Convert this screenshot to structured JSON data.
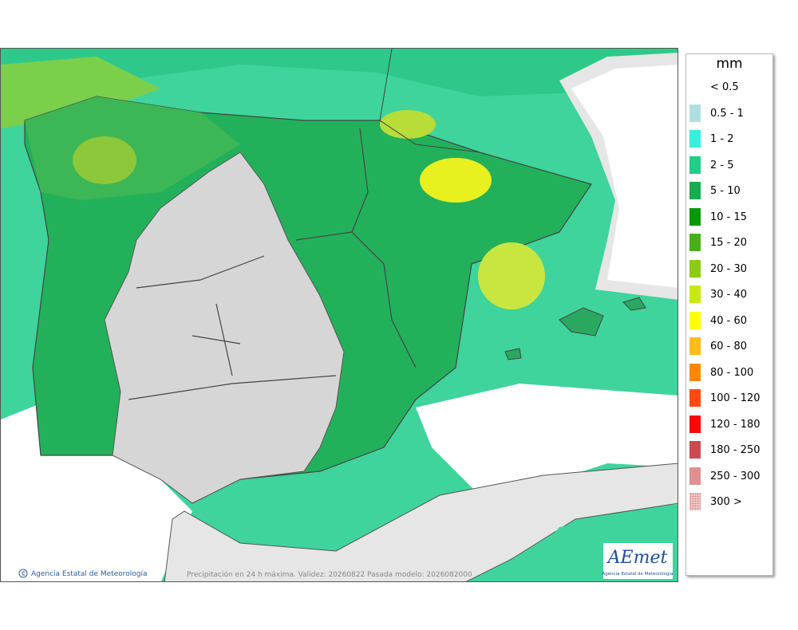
{
  "map": {
    "footer": "Precipitación en 24 h máxima. Validez: 20260822 Pasada modelo: 2026082000",
    "credit": "Agencia Estatal de Meteorología",
    "logo": {
      "name": "AEmet",
      "subtitle": "Agencia Estatal de Meteorología"
    }
  },
  "legend": {
    "title": "mm",
    "items": [
      {
        "label": "< 0.5"
      },
      {
        "label": "0.5 - 1",
        "color": "#b0dfe3"
      },
      {
        "label": "1 - 2",
        "color": "#36f0dc"
      },
      {
        "label": "2 - 5",
        "color": "#1fcf88"
      },
      {
        "label": "5 - 10",
        "color": "#16ad4c"
      },
      {
        "label": "10 - 15",
        "color": "#089808"
      },
      {
        "label": "15 - 20",
        "color": "#4aae1c"
      },
      {
        "label": "20 - 30",
        "color": "#8ccc14"
      },
      {
        "label": "30 - 40",
        "color": "#c8e814"
      },
      {
        "label": "40 - 60",
        "color": "#ffff00"
      },
      {
        "label": "60 - 80",
        "color": "#ffbb18"
      },
      {
        "label": "80 - 100",
        "color": "#ff8800"
      },
      {
        "label": "100 - 120",
        "color": "#ff4a10"
      },
      {
        "label": "120 - 180",
        "color": "#ff0808"
      },
      {
        "label": "180 - 250",
        "color": "#cc4b50"
      },
      {
        "label": "250 - 300",
        "color": "#e09090"
      },
      {
        "label": "300 >",
        "color": "#f2cccc"
      }
    ]
  }
}
